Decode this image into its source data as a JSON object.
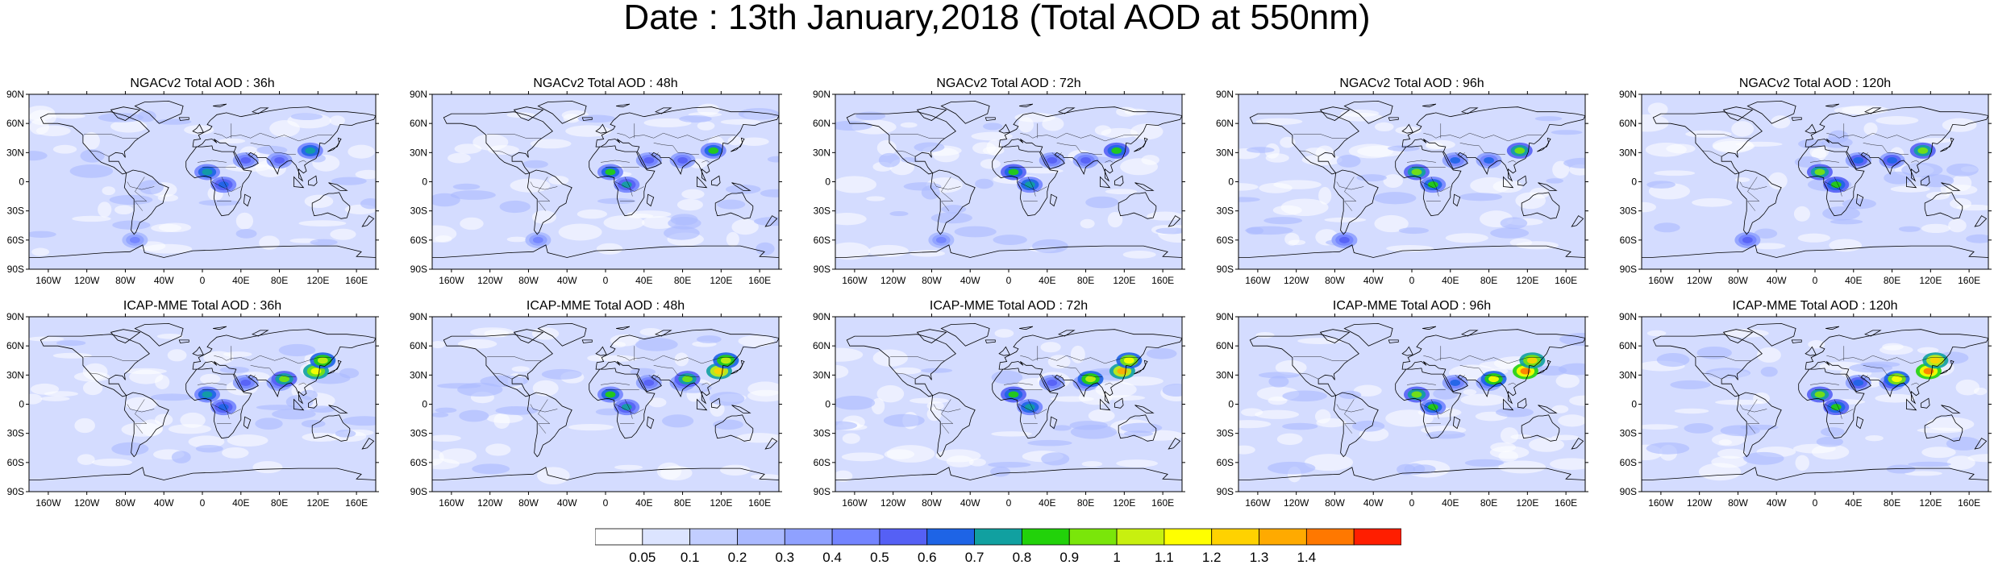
{
  "title": "Date : 13th January,2018 (Total AOD at 550nm)",
  "axes": {
    "lat_labels": [
      "90N",
      "60N",
      "30N",
      "0",
      "30S",
      "60S",
      "90S"
    ],
    "lon_labels": [
      "160W",
      "120W",
      "80W",
      "40W",
      "0",
      "40E",
      "80E",
      "120E",
      "160E"
    ],
    "lat_values": [
      90,
      60,
      30,
      0,
      -30,
      -60,
      -90
    ],
    "lon_values": [
      -160,
      -120,
      -80,
      -40,
      0,
      40,
      80,
      120,
      160
    ],
    "lon_range": [
      -180,
      180
    ],
    "lat_range": [
      -90,
      90
    ]
  },
  "colors": {
    "ocean_background": "#d4dcff",
    "coastline": "#000000"
  },
  "rows": [
    {
      "model": "NGACv2",
      "panels": [
        {
          "title": "NGACv2 Total AOD : 36h",
          "lead_hours": 36
        },
        {
          "title": "NGACv2 Total AOD : 48h",
          "lead_hours": 48
        },
        {
          "title": "NGACv2 Total AOD : 72h",
          "lead_hours": 72
        },
        {
          "title": "NGACv2 Total AOD : 96h",
          "lead_hours": 96
        },
        {
          "title": "NGACv2 Total AOD : 120h",
          "lead_hours": 120
        }
      ]
    },
    {
      "model": "ICAP-MME",
      "panels": [
        {
          "title": "ICAP-MME Total AOD : 36h",
          "lead_hours": 36
        },
        {
          "title": "ICAP-MME Total AOD : 48h",
          "lead_hours": 48
        },
        {
          "title": "ICAP-MME Total AOD : 72h",
          "lead_hours": 72
        },
        {
          "title": "ICAP-MME Total AOD : 96h",
          "lead_hours": 96
        },
        {
          "title": "ICAP-MME Total AOD : 120h",
          "lead_hours": 120
        }
      ]
    }
  ],
  "colorbar": {
    "colors": [
      "#ffffff",
      "#dce4ff",
      "#c2ceff",
      "#aab9ff",
      "#8fa1ff",
      "#7384ff",
      "#5560f5",
      "#1e64e6",
      "#11a0a0",
      "#22d20a",
      "#7ae60a",
      "#c8f00f",
      "#ffff00",
      "#ffd200",
      "#ffaa00",
      "#ff7800",
      "#ff1e00"
    ],
    "tick_labels": [
      "0.05",
      "0.1",
      "0.2",
      "0.3",
      "0.4",
      "0.5",
      "0.6",
      "0.7",
      "0.8",
      "0.9",
      "1",
      "1.1",
      "1.2",
      "1.3",
      "1.4"
    ]
  },
  "map_features": {
    "common_hotspots": [
      {
        "name": "west-africa",
        "lon": 5,
        "lat": 10,
        "level": 0.9
      },
      {
        "name": "central-africa",
        "lon": 22,
        "lat": -3,
        "level": 0.8
      },
      {
        "name": "arabia",
        "lon": 45,
        "lat": 22,
        "level": 0.6
      },
      {
        "name": "india",
        "lon": 80,
        "lat": 22,
        "level": 0.6
      }
    ],
    "ngac_hotspots": [
      {
        "name": "east-china",
        "lon": 112,
        "lat": 32,
        "level": 0.9
      },
      {
        "name": "southern-ocean",
        "lon": -70,
        "lat": -60,
        "level": 0.5
      }
    ],
    "icap_hotspots": [
      {
        "name": "east-china",
        "lon": 118,
        "lat": 34,
        "level": 1.4
      },
      {
        "name": "north-china",
        "lon": 125,
        "lat": 45,
        "level": 1.2
      },
      {
        "name": "indo-gangetic",
        "lon": 85,
        "lat": 26,
        "level": 1.1
      }
    ]
  }
}
